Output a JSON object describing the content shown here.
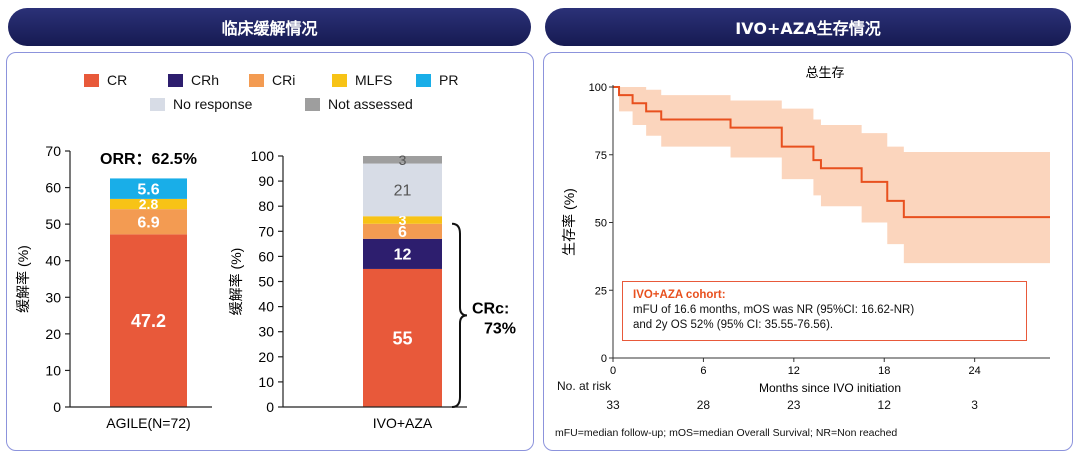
{
  "left_panel": {
    "title": "临床缓解情况",
    "legend": [
      {
        "label": "CR",
        "color": "#e8593a"
      },
      {
        "label": "CRh",
        "color": "#2d1e6e"
      },
      {
        "label": "CRi",
        "color": "#f39b52"
      },
      {
        "label": "MLFS",
        "color": "#f7c316"
      },
      {
        "label": "PR",
        "color": "#19aee8"
      },
      {
        "label": "No response",
        "color": "#d7dce6"
      },
      {
        "label": "Not assessed",
        "color": "#9e9e9e"
      }
    ],
    "orr_label": "ORR：62.5%",
    "crc_label_1": "CRc:",
    "crc_label_2": "73%"
  },
  "right_panel": {
    "title": "IVO+AZA生存情况",
    "plot_title": "总生存",
    "cohort_title": "IVO+AZA cohort:",
    "cohort_line1": "mFU of 16.6 months, mOS was NR (95%CI: 16.62-NR)",
    "cohort_line2": "and 2y OS 52% (95% CI: 35.55-76.56).",
    "at_risk_label": "No. at risk",
    "at_risk_values": [
      "33",
      "28",
      "23",
      "12",
      "3"
    ],
    "footnote": "mFU=median follow-up; mOS=median Overall Survival; NR=Non reached"
  },
  "chart_data": [
    {
      "type": "bar",
      "stacked": true,
      "categories": [
        "AGILE(N=72)"
      ],
      "ylabel": "缓解率 (%)",
      "ylim": [
        0,
        70
      ],
      "yticks": [
        0,
        10,
        20,
        30,
        40,
        50,
        60,
        70
      ],
      "series": [
        {
          "name": "CR",
          "values": [
            47.2
          ]
        },
        {
          "name": "CRi",
          "values": [
            6.9
          ]
        },
        {
          "name": "MLFS",
          "values": [
            2.8
          ]
        },
        {
          "name": "PR",
          "values": [
            5.6
          ]
        }
      ],
      "data_labels": [
        "47.2",
        "6.9",
        "2.8",
        "5.6"
      ],
      "annotation": "ORR：62.5%"
    },
    {
      "type": "bar",
      "stacked": true,
      "categories": [
        "IVO+AZA"
      ],
      "ylabel": "缓解率 (%)",
      "ylim": [
        0,
        100
      ],
      "yticks": [
        0,
        10,
        20,
        30,
        40,
        50,
        60,
        70,
        80,
        90,
        100
      ],
      "series": [
        {
          "name": "CR",
          "values": [
            55
          ]
        },
        {
          "name": "CRh",
          "values": [
            12
          ]
        },
        {
          "name": "CRi",
          "values": [
            6
          ]
        },
        {
          "name": "MLFS",
          "values": [
            3
          ]
        },
        {
          "name": "No response",
          "values": [
            21
          ]
        },
        {
          "name": "Not assessed",
          "values": [
            3
          ]
        }
      ],
      "data_labels": [
        "55",
        "12",
        "6",
        "3",
        "21",
        "3"
      ],
      "annotation": "CRc: 73%"
    },
    {
      "type": "line",
      "title": "总生存",
      "xlabel": "Months since IVO initiation",
      "ylabel": "生存率 (%)",
      "xlim": [
        0,
        29
      ],
      "ylim": [
        0,
        100
      ],
      "xticks": [
        0,
        6,
        12,
        18,
        24
      ],
      "yticks": [
        0,
        25,
        50,
        75,
        100
      ],
      "step": true,
      "series": [
        {
          "values_x": [
            0,
            0.4,
            0.4,
            1.3,
            1.3,
            2.2,
            2.2,
            3.2,
            3.2,
            7.8,
            7.8,
            11.2,
            11.2,
            13.3,
            13.3,
            13.8,
            13.8,
            16.5,
            16.5,
            18.2,
            18.2,
            19.3,
            19.3,
            29
          ],
          "values_y": [
            100,
            100,
            97,
            97,
            94,
            94,
            91,
            91,
            88,
            88,
            85,
            85,
            78,
            78,
            73,
            73,
            70,
            70,
            65,
            65,
            58,
            58,
            52,
            52
          ],
          "ci_lower": [
            100,
            100,
            91,
            91,
            86,
            86,
            82,
            82,
            78,
            78,
            74,
            74,
            66,
            66,
            60,
            60,
            56,
            56,
            50,
            50,
            42,
            42,
            35,
            35
          ],
          "ci_upper": [
            100,
            100,
            100,
            100,
            100,
            100,
            99,
            99,
            97,
            97,
            95,
            95,
            92,
            92,
            88,
            88,
            86,
            86,
            83,
            83,
            78,
            78,
            76,
            76
          ]
        }
      ],
      "colors": {
        "line": "#e8501e",
        "ci": "#fbd5bd"
      }
    }
  ]
}
